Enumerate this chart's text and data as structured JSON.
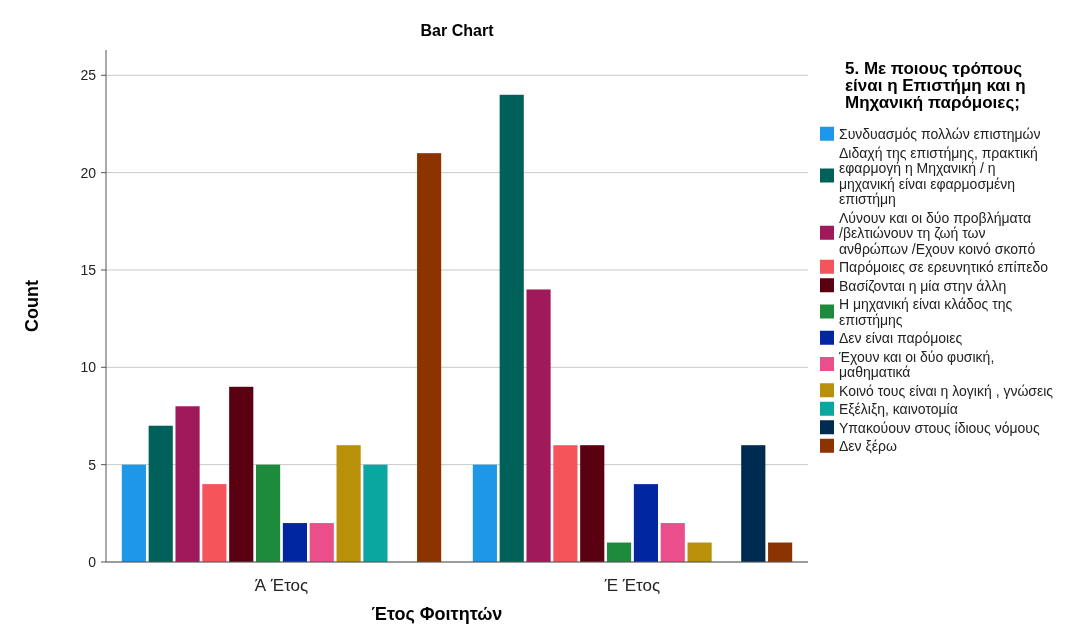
{
  "chart_data": {
    "type": "bar",
    "title": "Bar Chart",
    "xlabel": "Έτος Φοιτητών",
    "ylabel": "Count",
    "legend_title": "5. Με ποιους τρόπους είναι η Επιστήμη και η Μηχανική παρόμοιες;",
    "categories": [
      "Ά Έτος",
      "Έ Έτος"
    ],
    "ylim": [
      0,
      26.3
    ],
    "yticks": [
      0,
      5,
      10,
      15,
      20,
      25
    ],
    "grid": "y",
    "legend": "right",
    "series": [
      {
        "name": "Συνδυασμός πολλών επιστημών",
        "color": "#1f97e8",
        "values": [
          5,
          5
        ]
      },
      {
        "name": "Διδαχή της επιστήμης, πρακτική εφαρμογή η Μηχανική / η μηχανική είναι εφαρμοσμένη επιστήμη",
        "color": "#00605a",
        "values": [
          7,
          24
        ]
      },
      {
        "name": "Λύνουν και οι δύο  προβλήματα /βελτιώνουν τη ζωή των ανθρώπων /Εχουν κοινό σκοπό",
        "color": "#a0195a",
        "values": [
          8,
          14
        ]
      },
      {
        "name": "Παρόμοιες σε ερευνητικό επίπεδο",
        "color": "#f5545a",
        "values": [
          4,
          6
        ]
      },
      {
        "name": "Βασίζονται η μία στην άλλη",
        "color": "#5a0010",
        "values": [
          9,
          6
        ]
      },
      {
        "name": "Η μηχανική είναι κλάδος της επιστήμης",
        "color": "#1e8a3c",
        "values": [
          5,
          1
        ]
      },
      {
        "name": "Δεν είναι παρόμοιες",
        "color": "#0026a0",
        "values": [
          2,
          4
        ]
      },
      {
        "name": "Έχουν και οι δύο φυσική, μαθηματικά",
        "color": "#ea4f8c",
        "values": [
          2,
          2
        ]
      },
      {
        "name": "Κοινό τους είναι η λογική , γνώσεις",
        "color": "#b8900a",
        "values": [
          6,
          1
        ]
      },
      {
        "name": "Εξέλιξη, καινοτομία",
        "color": "#0aa6a0",
        "values": [
          5,
          null
        ]
      },
      {
        "name": "Υπακούουν στους ίδιους νόμους",
        "color": "#002b50",
        "values": [
          null,
          6
        ]
      },
      {
        "name": "Δεν ξέρω",
        "color": "#8b3400",
        "values": [
          21,
          1
        ]
      }
    ]
  }
}
